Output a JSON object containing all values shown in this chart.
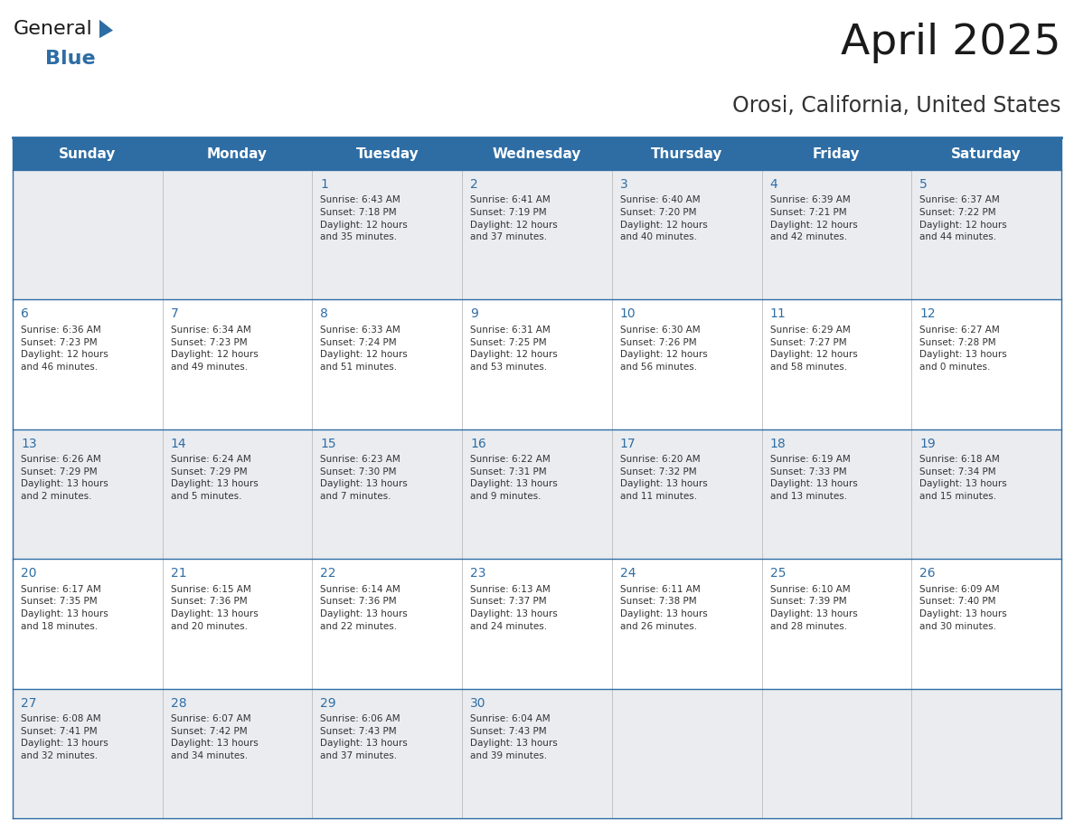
{
  "title": "April 2025",
  "subtitle": "Orosi, California, United States",
  "header_bg_color": "#2E6DA4",
  "header_text_color": "#FFFFFF",
  "cell_bg_even": "#EAECF0",
  "cell_bg_odd": "#FFFFFF",
  "day_number_color": "#2E6DA4",
  "cell_text_color": "#333333",
  "border_color": "#2E6DA4",
  "grid_line_color": "#AAAAAA",
  "days_of_week": [
    "Sunday",
    "Monday",
    "Tuesday",
    "Wednesday",
    "Thursday",
    "Friday",
    "Saturday"
  ],
  "weeks": [
    [
      {
        "day": null,
        "sunrise": null,
        "sunset": null,
        "daylight": null
      },
      {
        "day": null,
        "sunrise": null,
        "sunset": null,
        "daylight": null
      },
      {
        "day": 1,
        "sunrise": "6:43 AM",
        "sunset": "7:18 PM",
        "daylight": "12 hours\nand 35 minutes."
      },
      {
        "day": 2,
        "sunrise": "6:41 AM",
        "sunset": "7:19 PM",
        "daylight": "12 hours\nand 37 minutes."
      },
      {
        "day": 3,
        "sunrise": "6:40 AM",
        "sunset": "7:20 PM",
        "daylight": "12 hours\nand 40 minutes."
      },
      {
        "day": 4,
        "sunrise": "6:39 AM",
        "sunset": "7:21 PM",
        "daylight": "12 hours\nand 42 minutes."
      },
      {
        "day": 5,
        "sunrise": "6:37 AM",
        "sunset": "7:22 PM",
        "daylight": "12 hours\nand 44 minutes."
      }
    ],
    [
      {
        "day": 6,
        "sunrise": "6:36 AM",
        "sunset": "7:23 PM",
        "daylight": "12 hours\nand 46 minutes."
      },
      {
        "day": 7,
        "sunrise": "6:34 AM",
        "sunset": "7:23 PM",
        "daylight": "12 hours\nand 49 minutes."
      },
      {
        "day": 8,
        "sunrise": "6:33 AM",
        "sunset": "7:24 PM",
        "daylight": "12 hours\nand 51 minutes."
      },
      {
        "day": 9,
        "sunrise": "6:31 AM",
        "sunset": "7:25 PM",
        "daylight": "12 hours\nand 53 minutes."
      },
      {
        "day": 10,
        "sunrise": "6:30 AM",
        "sunset": "7:26 PM",
        "daylight": "12 hours\nand 56 minutes."
      },
      {
        "day": 11,
        "sunrise": "6:29 AM",
        "sunset": "7:27 PM",
        "daylight": "12 hours\nand 58 minutes."
      },
      {
        "day": 12,
        "sunrise": "6:27 AM",
        "sunset": "7:28 PM",
        "daylight": "13 hours\nand 0 minutes."
      }
    ],
    [
      {
        "day": 13,
        "sunrise": "6:26 AM",
        "sunset": "7:29 PM",
        "daylight": "13 hours\nand 2 minutes."
      },
      {
        "day": 14,
        "sunrise": "6:24 AM",
        "sunset": "7:29 PM",
        "daylight": "13 hours\nand 5 minutes."
      },
      {
        "day": 15,
        "sunrise": "6:23 AM",
        "sunset": "7:30 PM",
        "daylight": "13 hours\nand 7 minutes."
      },
      {
        "day": 16,
        "sunrise": "6:22 AM",
        "sunset": "7:31 PM",
        "daylight": "13 hours\nand 9 minutes."
      },
      {
        "day": 17,
        "sunrise": "6:20 AM",
        "sunset": "7:32 PM",
        "daylight": "13 hours\nand 11 minutes."
      },
      {
        "day": 18,
        "sunrise": "6:19 AM",
        "sunset": "7:33 PM",
        "daylight": "13 hours\nand 13 minutes."
      },
      {
        "day": 19,
        "sunrise": "6:18 AM",
        "sunset": "7:34 PM",
        "daylight": "13 hours\nand 15 minutes."
      }
    ],
    [
      {
        "day": 20,
        "sunrise": "6:17 AM",
        "sunset": "7:35 PM",
        "daylight": "13 hours\nand 18 minutes."
      },
      {
        "day": 21,
        "sunrise": "6:15 AM",
        "sunset": "7:36 PM",
        "daylight": "13 hours\nand 20 minutes."
      },
      {
        "day": 22,
        "sunrise": "6:14 AM",
        "sunset": "7:36 PM",
        "daylight": "13 hours\nand 22 minutes."
      },
      {
        "day": 23,
        "sunrise": "6:13 AM",
        "sunset": "7:37 PM",
        "daylight": "13 hours\nand 24 minutes."
      },
      {
        "day": 24,
        "sunrise": "6:11 AM",
        "sunset": "7:38 PM",
        "daylight": "13 hours\nand 26 minutes."
      },
      {
        "day": 25,
        "sunrise": "6:10 AM",
        "sunset": "7:39 PM",
        "daylight": "13 hours\nand 28 minutes."
      },
      {
        "day": 26,
        "sunrise": "6:09 AM",
        "sunset": "7:40 PM",
        "daylight": "13 hours\nand 30 minutes."
      }
    ],
    [
      {
        "day": 27,
        "sunrise": "6:08 AM",
        "sunset": "7:41 PM",
        "daylight": "13 hours\nand 32 minutes."
      },
      {
        "day": 28,
        "sunrise": "6:07 AM",
        "sunset": "7:42 PM",
        "daylight": "13 hours\nand 34 minutes."
      },
      {
        "day": 29,
        "sunrise": "6:06 AM",
        "sunset": "7:43 PM",
        "daylight": "13 hours\nand 37 minutes."
      },
      {
        "day": 30,
        "sunrise": "6:04 AM",
        "sunset": "7:43 PM",
        "daylight": "13 hours\nand 39 minutes."
      },
      {
        "day": null,
        "sunrise": null,
        "sunset": null,
        "daylight": null
      },
      {
        "day": null,
        "sunrise": null,
        "sunset": null,
        "daylight": null
      },
      {
        "day": null,
        "sunrise": null,
        "sunset": null,
        "daylight": null
      }
    ]
  ],
  "logo_general_color": "#1a1a1a",
  "logo_blue_color": "#2E6DA4",
  "title_color": "#1a1a1a",
  "subtitle_color": "#333333",
  "fig_width": 11.88,
  "fig_height": 9.18,
  "dpi": 100
}
